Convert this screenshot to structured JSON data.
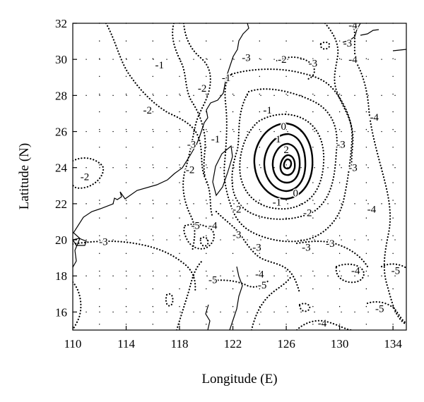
{
  "map": {
    "xlabel": "Longitude (E)",
    "ylabel": "Latitude (N)",
    "x_ticks": [
      "110",
      "114",
      "118",
      "122",
      "126",
      "130",
      "134"
    ],
    "y_ticks": [
      "32",
      "30",
      "28",
      "26",
      "24",
      "22",
      "20",
      "18",
      "16"
    ],
    "lon_range": [
      110,
      135
    ],
    "lat_range": [
      15,
      32
    ],
    "contour_labels": [
      {
        "text": "-4",
        "lon": 131.0,
        "lat": 31.9
      },
      {
        "text": "-3",
        "lon": 130.6,
        "lat": 30.9
      },
      {
        "text": "-4",
        "lon": 131.0,
        "lat": 30.0
      },
      {
        "text": "-3",
        "lon": 123.0,
        "lat": 30.1
      },
      {
        "text": "-2",
        "lon": 125.7,
        "lat": 30.0
      },
      {
        "text": "-3",
        "lon": 128.0,
        "lat": 29.8
      },
      {
        "text": "-1",
        "lon": 116.5,
        "lat": 29.7
      },
      {
        "text": "-1",
        "lon": 121.5,
        "lat": 29.0
      },
      {
        "text": "-2",
        "lon": 119.7,
        "lat": 28.4
      },
      {
        "text": "-2",
        "lon": 115.6,
        "lat": 27.2
      },
      {
        "text": "-1",
        "lon": 124.6,
        "lat": 27.2
      },
      {
        "text": "-4",
        "lon": 132.6,
        "lat": 26.8
      },
      {
        "text": "0",
        "lon": 125.8,
        "lat": 26.3
      },
      {
        "text": "1",
        "lon": 125.4,
        "lat": 25.6
      },
      {
        "text": "2",
        "lon": 126.0,
        "lat": 25.0
      },
      {
        "text": "-3",
        "lon": 118.9,
        "lat": 25.3
      },
      {
        "text": "-1",
        "lon": 120.7,
        "lat": 25.6
      },
      {
        "text": "-3",
        "lon": 130.1,
        "lat": 25.3
      },
      {
        "text": "-2",
        "lon": 118.8,
        "lat": 23.9
      },
      {
        "text": "-3",
        "lon": 131.0,
        "lat": 24.0
      },
      {
        "text": "-2",
        "lon": 110.9,
        "lat": 23.5
      },
      {
        "text": "0",
        "lon": 126.7,
        "lat": 22.6
      },
      {
        "text": "-1",
        "lon": 125.3,
        "lat": 22.1
      },
      {
        "text": "-2",
        "lon": 122.3,
        "lat": 21.7
      },
      {
        "text": "-2",
        "lon": 127.6,
        "lat": 21.5
      },
      {
        "text": "-4",
        "lon": 132.4,
        "lat": 21.7
      },
      {
        "text": "-5",
        "lon": 119.2,
        "lat": 20.8
      },
      {
        "text": "-4",
        "lon": 120.5,
        "lat": 20.8
      },
      {
        "text": "-3",
        "lon": 122.3,
        "lat": 20.3
      },
      {
        "text": "-3",
        "lon": 112.3,
        "lat": 19.9
      },
      {
        "text": "-3",
        "lon": 123.8,
        "lat": 19.6
      },
      {
        "text": "-3",
        "lon": 127.5,
        "lat": 19.6
      },
      {
        "text": "-3",
        "lon": 129.3,
        "lat": 19.8
      },
      {
        "text": "-4",
        "lon": 131.2,
        "lat": 18.3
      },
      {
        "text": "-5",
        "lon": 134.2,
        "lat": 18.3
      },
      {
        "text": "-4",
        "lon": 124.0,
        "lat": 18.1
      },
      {
        "text": "-5",
        "lon": 120.5,
        "lat": 17.8
      },
      {
        "text": "-5",
        "lon": 124.2,
        "lat": 17.5
      },
      {
        "text": "-5",
        "lon": 133.0,
        "lat": 16.2
      },
      {
        "text": "-4",
        "lon": 128.7,
        "lat": 15.4
      }
    ]
  }
}
